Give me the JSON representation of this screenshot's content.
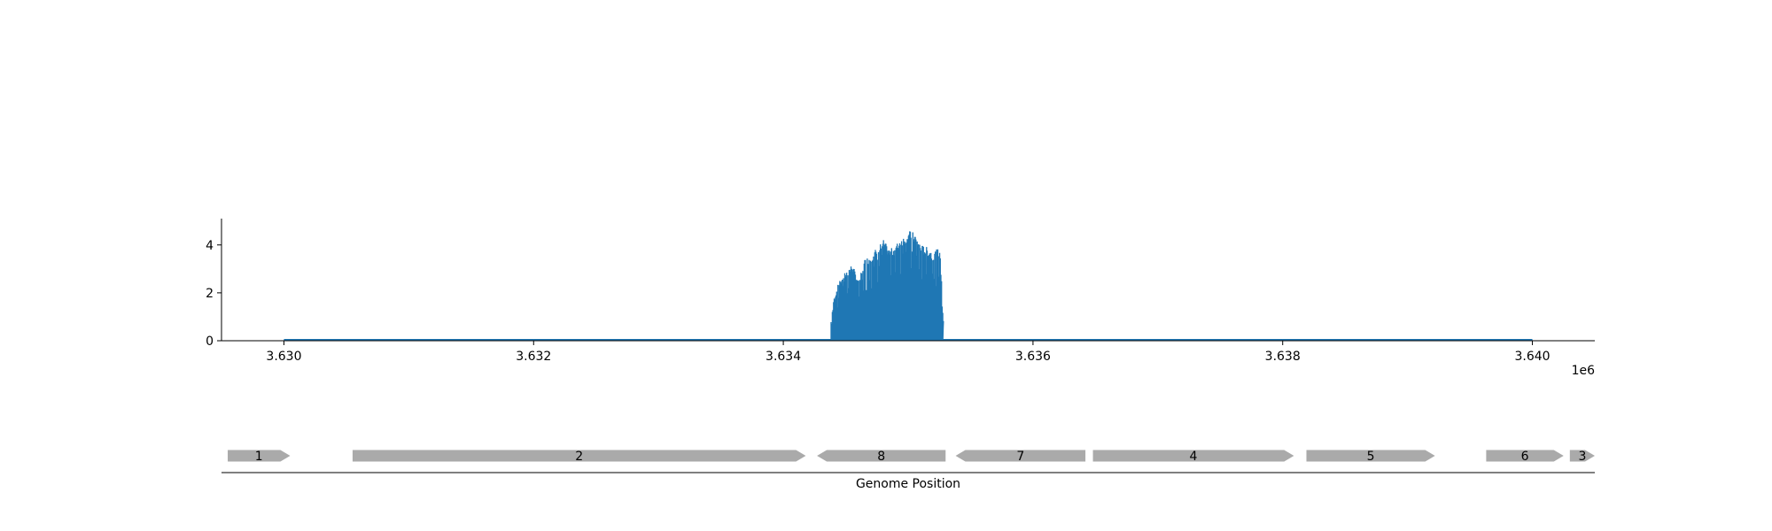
{
  "chart_data": [
    {
      "type": "area",
      "title": "",
      "xlabel": "",
      "ylabel": "",
      "x_offset_label": "1e6",
      "xlim": [
        3629500,
        3640500
      ],
      "ylim": [
        0,
        5.1
      ],
      "x_ticks": [
        3630000,
        3632000,
        3634000,
        3636000,
        3638000,
        3640000
      ],
      "x_tick_labels": [
        "3.630",
        "3.632",
        "3.634",
        "3.636",
        "3.638",
        "3.640"
      ],
      "y_ticks": [
        0,
        2,
        4
      ],
      "y_tick_labels": [
        "0",
        "2",
        "4"
      ],
      "grid": false,
      "color": "#1f77b4",
      "x_range": [
        3630000,
        3640000
      ],
      "signal_region": [
        3634380,
        3635280
      ],
      "envelope": [
        {
          "x": 3634380,
          "y": 0.8
        },
        {
          "x": 3634400,
          "y": 1.7
        },
        {
          "x": 3634450,
          "y": 2.6
        },
        {
          "x": 3634500,
          "y": 2.9
        },
        {
          "x": 3634550,
          "y": 3.2
        },
        {
          "x": 3634600,
          "y": 2.5
        },
        {
          "x": 3634650,
          "y": 3.4
        },
        {
          "x": 3634700,
          "y": 3.6
        },
        {
          "x": 3634750,
          "y": 3.9
        },
        {
          "x": 3634800,
          "y": 4.2
        },
        {
          "x": 3634850,
          "y": 3.8
        },
        {
          "x": 3634900,
          "y": 4.0
        },
        {
          "x": 3634950,
          "y": 4.4
        },
        {
          "x": 3635000,
          "y": 4.6
        },
        {
          "x": 3635050,
          "y": 4.5
        },
        {
          "x": 3635100,
          "y": 4.0
        },
        {
          "x": 3635150,
          "y": 3.9
        },
        {
          "x": 3635200,
          "y": 3.7
        },
        {
          "x": 3635250,
          "y": 3.9
        },
        {
          "x": 3635280,
          "y": 1.2
        }
      ]
    },
    {
      "type": "gene_track",
      "xlabel": "Genome Position",
      "color": "#aaaaaa",
      "genes": [
        {
          "label": "1",
          "start": 3629550,
          "end": 3630050,
          "strand": "+"
        },
        {
          "label": "2",
          "start": 3630550,
          "end": 3634180,
          "strand": "+"
        },
        {
          "label": "8",
          "start": 3634270,
          "end": 3635300,
          "strand": "-"
        },
        {
          "label": "7",
          "start": 3635380,
          "end": 3636420,
          "strand": "-"
        },
        {
          "label": "4",
          "start": 3636480,
          "end": 3638090,
          "strand": "+"
        },
        {
          "label": "5",
          "start": 3638190,
          "end": 3639220,
          "strand": "+"
        },
        {
          "label": "6",
          "start": 3639630,
          "end": 3640250,
          "strand": "+"
        },
        {
          "label": "3",
          "start": 3640300,
          "end": 3640500,
          "strand": "+"
        }
      ]
    }
  ]
}
